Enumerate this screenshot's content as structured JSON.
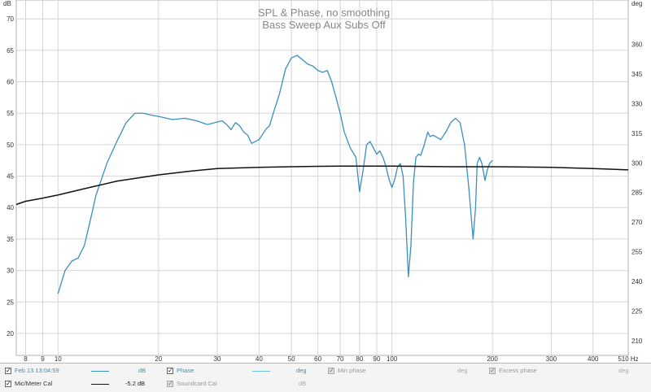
{
  "chart_data": {
    "type": "line",
    "title": "SPL & Phase, no smoothing",
    "subtitle": "Bass Sweep Aux Subs Off",
    "y_unit_left": "dB",
    "y_unit_right": "deg",
    "x_unit": "Hz",
    "x_scale": "log",
    "xlim": [
      7.5,
      510
    ],
    "ylim": [
      16.5,
      73
    ],
    "ylim_right": [
      202.5,
      382.5
    ],
    "x_ticks": [
      8,
      9,
      10,
      20,
      30,
      40,
      50,
      60,
      70,
      80,
      90,
      100,
      200,
      300,
      400,
      510
    ],
    "x_tick_labels": [
      "8",
      "9",
      "10",
      "20",
      "30",
      "40",
      "50",
      "60",
      "70",
      "80",
      "90",
      "100",
      "200",
      "300",
      "400",
      "510 Hz"
    ],
    "y_ticks": [
      20,
      25,
      30,
      35,
      40,
      45,
      50,
      55,
      60,
      65,
      70
    ],
    "y_ticks_right": [
      210,
      225,
      240,
      255,
      270,
      285,
      300,
      315,
      330,
      345,
      360
    ],
    "grid": true,
    "series": [
      {
        "name": "Feb 13 13:04:59",
        "color": "#3a8fbf",
        "x": [
          10,
          10.5,
          11,
          11.5,
          12,
          12.5,
          13,
          14,
          15,
          16,
          17,
          18,
          19,
          20,
          22,
          24,
          26,
          28,
          30,
          31,
          32,
          33,
          34,
          35,
          36,
          37,
          38,
          40,
          42,
          43,
          44,
          46,
          48,
          50,
          52,
          54,
          56,
          58,
          60,
          62,
          64,
          66,
          68,
          70,
          72,
          75,
          78,
          80,
          82,
          84,
          86,
          88,
          90,
          92,
          94,
          96,
          98,
          100,
          102,
          104,
          106,
          108,
          110,
          112,
          114,
          116,
          118,
          120,
          122,
          125,
          128,
          130,
          133,
          136,
          140,
          145,
          150,
          155,
          160,
          165,
          170,
          175,
          178,
          180,
          183,
          186,
          190,
          193,
          196,
          200
        ],
        "y": [
          26.3,
          30.0,
          31.5,
          32.0,
          34.0,
          38.0,
          42.0,
          47.0,
          50.5,
          53.5,
          55.0,
          55.0,
          54.7,
          54.5,
          54.0,
          54.2,
          53.8,
          53.2,
          53.6,
          53.8,
          53.2,
          52.4,
          53.5,
          53.0,
          52.0,
          51.5,
          50.2,
          50.8,
          52.5,
          53.0,
          54.8,
          58.0,
          62.0,
          63.8,
          64.2,
          63.5,
          62.8,
          62.5,
          61.8,
          61.5,
          61.8,
          60.0,
          57.5,
          55.0,
          52.0,
          49.5,
          48.0,
          42.5,
          46.0,
          50.0,
          50.5,
          49.5,
          48.5,
          49.0,
          48.0,
          46.5,
          44.5,
          43.2,
          44.5,
          46.5,
          47.0,
          45.0,
          38.0,
          29.0,
          34.0,
          44.0,
          48.0,
          48.5,
          48.3,
          50.0,
          52.0,
          51.3,
          51.5,
          51.2,
          50.8,
          52.0,
          53.5,
          54.2,
          53.5,
          50.0,
          43.0,
          35.0,
          40.0,
          47.0,
          48.0,
          47.0,
          44.3,
          46.0,
          47.0,
          47.5
        ]
      },
      {
        "name": "Mic/Meter Cal",
        "color": "#111111",
        "x": [
          7.5,
          8,
          9,
          10,
          12,
          15,
          20,
          25,
          30,
          40,
          50,
          70,
          100,
          150,
          200,
          300,
          400,
          510
        ],
        "y": [
          40.5,
          41.0,
          41.5,
          42.0,
          43.0,
          44.2,
          45.2,
          45.8,
          46.2,
          46.4,
          46.5,
          46.6,
          46.6,
          46.5,
          46.5,
          46.4,
          46.2,
          46.0
        ]
      }
    ]
  },
  "legend": {
    "row1": {
      "item1": {
        "label": "Feb 13 13:04:59",
        "unit": "dB",
        "color": "#3a8fbf"
      },
      "item2": {
        "label": "Phase",
        "unit": "deg"
      },
      "item3": {
        "label": "Min phase",
        "unit": "deg"
      },
      "item4": {
        "label": "Excess phase",
        "unit": "deg"
      }
    },
    "row2": {
      "item1": {
        "label": "Mic/Meter Cal",
        "value": "-5.2 dB",
        "color": "#111111"
      },
      "item2": {
        "label": "Soundcard Cal",
        "unit": "dB"
      }
    }
  }
}
